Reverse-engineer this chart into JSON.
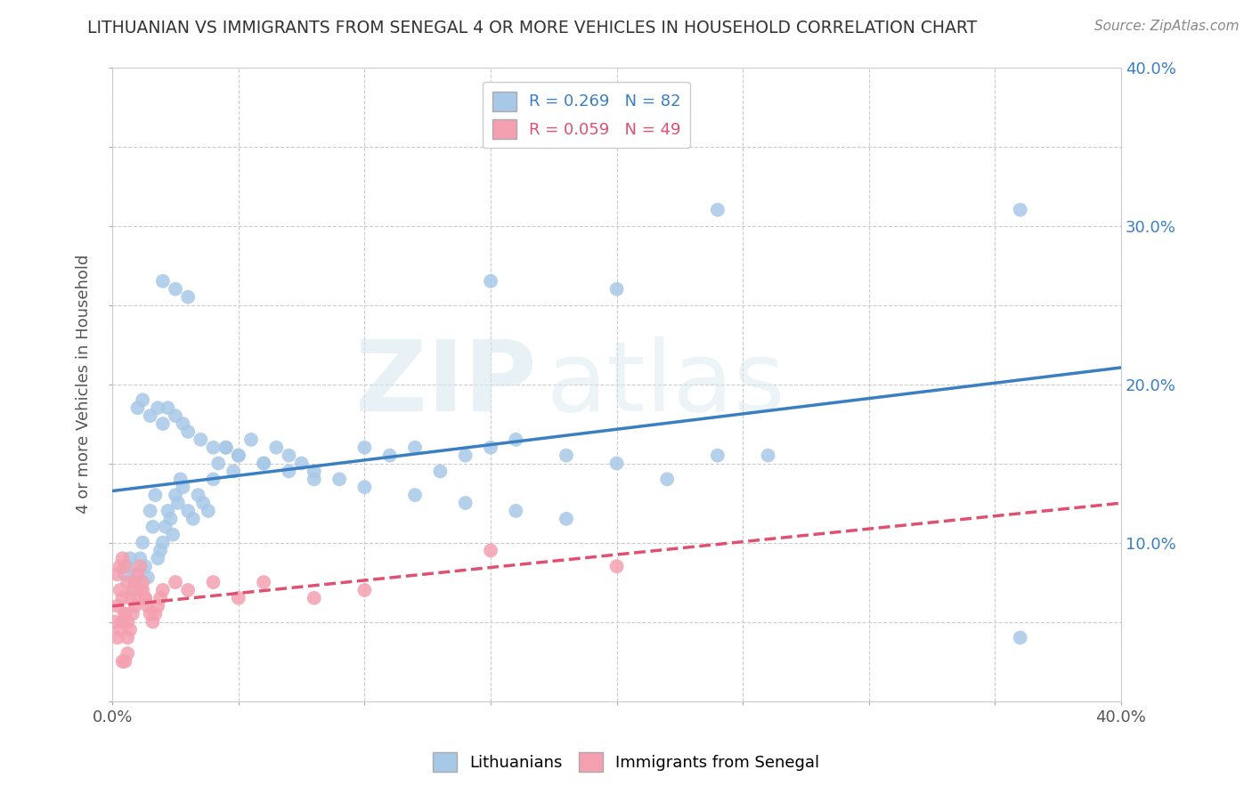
{
  "title": "LITHUANIAN VS IMMIGRANTS FROM SENEGAL 4 OR MORE VEHICLES IN HOUSEHOLD CORRELATION CHART",
  "source": "Source: ZipAtlas.com",
  "ylabel": "4 or more Vehicles in Household",
  "xlim": [
    0.0,
    0.4
  ],
  "ylim": [
    0.0,
    0.4
  ],
  "xticks": [
    0.0,
    0.05,
    0.1,
    0.15,
    0.2,
    0.25,
    0.3,
    0.35,
    0.4
  ],
  "yticks": [
    0.0,
    0.05,
    0.1,
    0.15,
    0.2,
    0.25,
    0.3,
    0.35,
    0.4
  ],
  "blue_R": 0.269,
  "blue_N": 82,
  "pink_R": 0.059,
  "pink_N": 49,
  "legend_labels": [
    "Lithuanians",
    "Immigrants from Senegal"
  ],
  "watermark_zip": "ZIP",
  "watermark_atlas": "atlas",
  "blue_color": "#a8c8e8",
  "blue_line_color": "#3a7fc1",
  "pink_color": "#f4a0b0",
  "pink_line_color": "#e05070",
  "background_color": "#ffffff",
  "grid_color": "#cccccc",
  "blue_x": [
    0.005,
    0.006,
    0.007,
    0.008,
    0.009,
    0.01,
    0.011,
    0.012,
    0.013,
    0.014,
    0.015,
    0.016,
    0.017,
    0.018,
    0.019,
    0.02,
    0.021,
    0.022,
    0.023,
    0.024,
    0.025,
    0.026,
    0.027,
    0.028,
    0.03,
    0.032,
    0.034,
    0.036,
    0.038,
    0.04,
    0.042,
    0.045,
    0.048,
    0.05,
    0.055,
    0.06,
    0.065,
    0.07,
    0.075,
    0.08,
    0.09,
    0.1,
    0.11,
    0.12,
    0.13,
    0.14,
    0.15,
    0.16,
    0.18,
    0.2,
    0.22,
    0.24,
    0.26,
    0.01,
    0.012,
    0.015,
    0.018,
    0.02,
    0.022,
    0.025,
    0.028,
    0.03,
    0.035,
    0.04,
    0.045,
    0.05,
    0.06,
    0.07,
    0.08,
    0.1,
    0.12,
    0.14,
    0.16,
    0.18,
    0.02,
    0.025,
    0.03,
    0.15,
    0.2,
    0.36,
    0.24,
    0.36
  ],
  "blue_y": [
    0.08,
    0.085,
    0.09,
    0.07,
    0.075,
    0.08,
    0.09,
    0.1,
    0.085,
    0.078,
    0.12,
    0.11,
    0.13,
    0.09,
    0.095,
    0.1,
    0.11,
    0.12,
    0.115,
    0.105,
    0.13,
    0.125,
    0.14,
    0.135,
    0.12,
    0.115,
    0.13,
    0.125,
    0.12,
    0.14,
    0.15,
    0.16,
    0.145,
    0.155,
    0.165,
    0.15,
    0.16,
    0.155,
    0.15,
    0.145,
    0.14,
    0.16,
    0.155,
    0.16,
    0.145,
    0.155,
    0.16,
    0.165,
    0.155,
    0.15,
    0.14,
    0.155,
    0.155,
    0.185,
    0.19,
    0.18,
    0.185,
    0.175,
    0.185,
    0.18,
    0.175,
    0.17,
    0.165,
    0.16,
    0.16,
    0.155,
    0.15,
    0.145,
    0.14,
    0.135,
    0.13,
    0.125,
    0.12,
    0.115,
    0.265,
    0.26,
    0.255,
    0.265,
    0.26,
    0.04,
    0.31,
    0.31
  ],
  "pink_x": [
    0.001,
    0.002,
    0.003,
    0.004,
    0.005,
    0.006,
    0.007,
    0.008,
    0.009,
    0.01,
    0.011,
    0.012,
    0.013,
    0.014,
    0.015,
    0.016,
    0.017,
    0.018,
    0.019,
    0.02,
    0.002,
    0.003,
    0.004,
    0.005,
    0.006,
    0.007,
    0.008,
    0.009,
    0.01,
    0.011,
    0.012,
    0.013,
    0.002,
    0.003,
    0.004,
    0.005,
    0.006,
    0.025,
    0.03,
    0.04,
    0.05,
    0.06,
    0.08,
    0.1,
    0.15,
    0.2,
    0.004,
    0.005,
    0.006
  ],
  "pink_y": [
    0.05,
    0.06,
    0.07,
    0.065,
    0.055,
    0.05,
    0.045,
    0.055,
    0.06,
    0.065,
    0.07,
    0.075,
    0.065,
    0.06,
    0.055,
    0.05,
    0.055,
    0.06,
    0.065,
    0.07,
    0.08,
    0.085,
    0.09,
    0.085,
    0.075,
    0.065,
    0.07,
    0.075,
    0.08,
    0.085,
    0.07,
    0.065,
    0.04,
    0.045,
    0.05,
    0.055,
    0.04,
    0.075,
    0.07,
    0.075,
    0.065,
    0.075,
    0.065,
    0.07,
    0.095,
    0.085,
    0.025,
    0.025,
    0.03
  ]
}
